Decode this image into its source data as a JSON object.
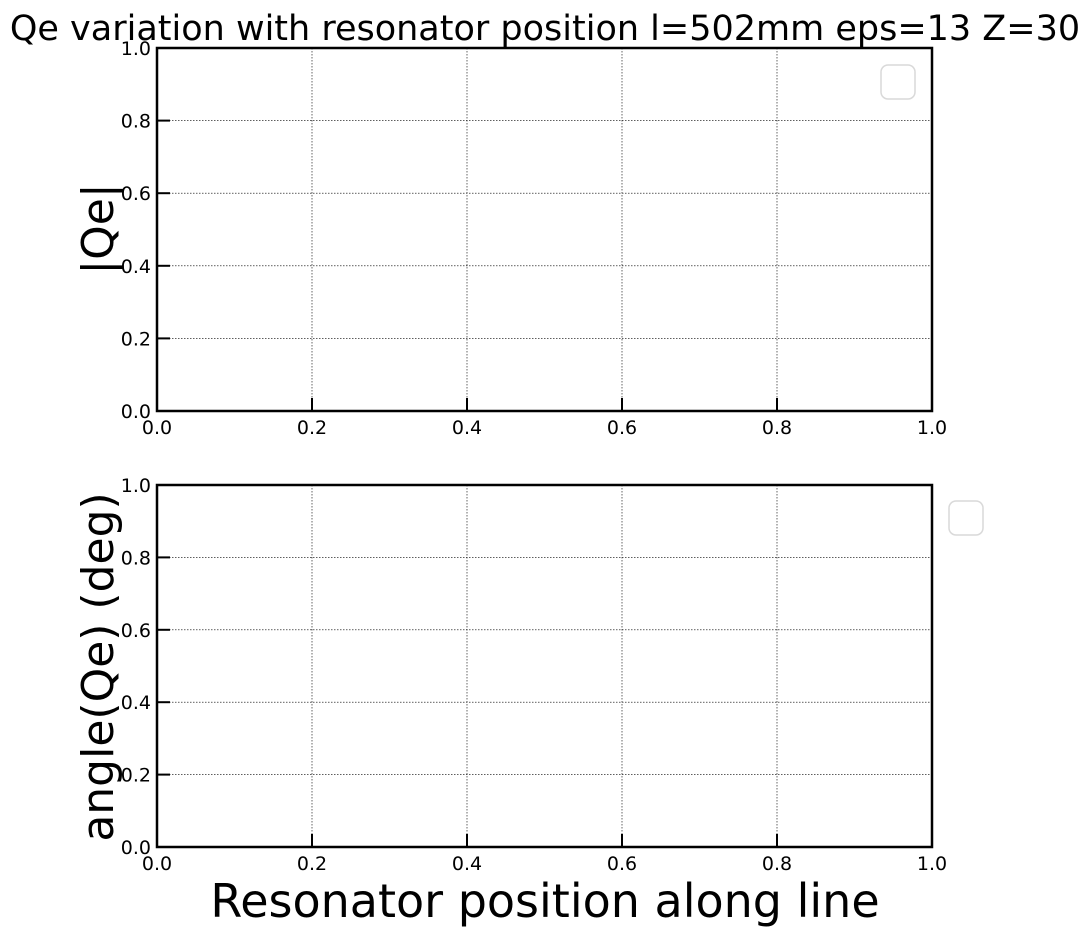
{
  "chart_data": [
    {
      "type": "line",
      "title": "Qe variation with resonator position l=502mm eps=13 Z=30",
      "xlabel": "",
      "ylabel": "|Qe|",
      "xlim": [
        0.0,
        1.0
      ],
      "ylim": [
        0.0,
        1.0
      ],
      "x_ticks": [
        "0.0",
        "0.2",
        "0.4",
        "0.6",
        "0.8",
        "1.0"
      ],
      "y_ticks": [
        "0.0",
        "0.2",
        "0.4",
        "0.6",
        "0.8",
        "1.0"
      ],
      "grid": true,
      "legend_position": "upper-right",
      "series": []
    },
    {
      "type": "line",
      "title": "",
      "xlabel": "Resonator position along line",
      "ylabel": "angle(Qe) (deg)",
      "xlim": [
        0.0,
        1.0
      ],
      "ylim": [
        0.0,
        1.0
      ],
      "x_ticks": [
        "0.0",
        "0.2",
        "0.4",
        "0.6",
        "0.8",
        "1.0"
      ],
      "y_ticks": [
        "0.0",
        "0.2",
        "0.4",
        "0.6",
        "0.8",
        "1.0"
      ],
      "grid": true,
      "legend_position": "outside-upper-right",
      "series": []
    }
  ]
}
